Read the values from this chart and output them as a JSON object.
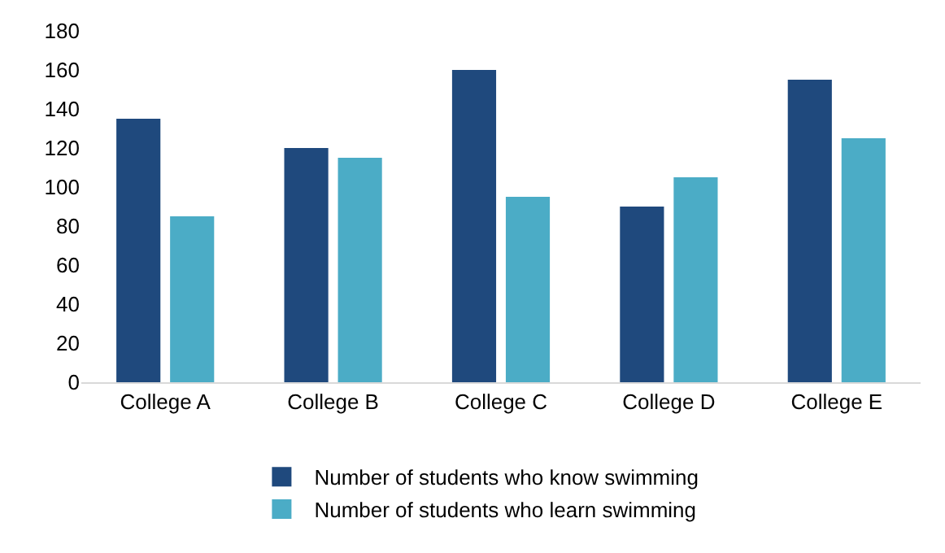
{
  "chart_data": {
    "type": "bar",
    "categories": [
      "College A",
      "College B",
      "College C",
      "College D",
      "College E"
    ],
    "series": [
      {
        "name": "Number of students who know swimming",
        "color": "#1f497d",
        "values": [
          135,
          120,
          160,
          90,
          155
        ]
      },
      {
        "name": "Number of students who learn swimming",
        "color": "#4bacc6",
        "values": [
          85,
          115,
          95,
          105,
          125
        ]
      }
    ],
    "ylim": [
      0,
      180
    ],
    "yticks": [
      0,
      20,
      40,
      60,
      80,
      100,
      120,
      140,
      160,
      180
    ],
    "grid": false,
    "legend": "bottom"
  }
}
